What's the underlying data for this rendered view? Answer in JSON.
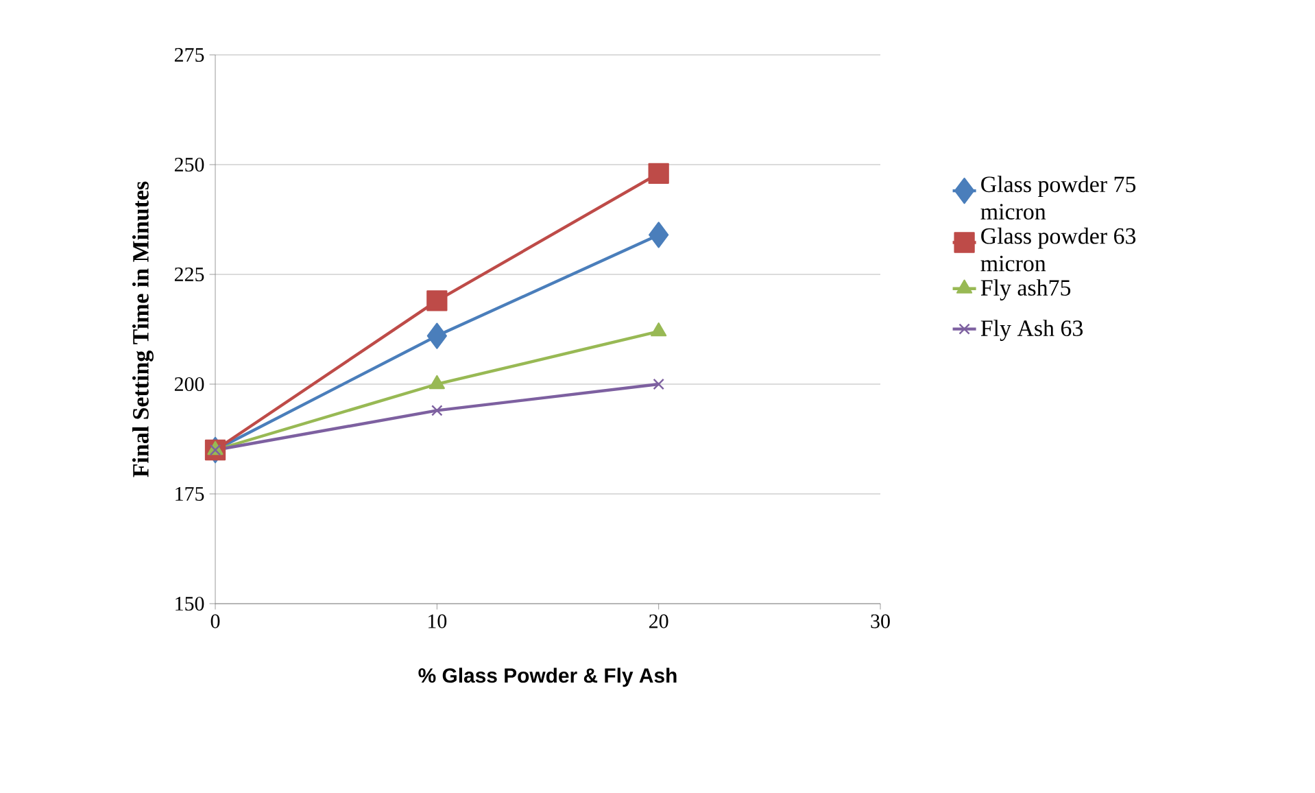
{
  "chart_data": {
    "type": "line",
    "xlabel": "%  Glass Powder & Fly Ash",
    "ylabel": "Final Setting Time in Minutes",
    "x": [
      0,
      10,
      20
    ],
    "xlim": [
      0,
      30
    ],
    "xticks": [
      0,
      10,
      20,
      30
    ],
    "ylim": [
      150,
      275
    ],
    "yticks": [
      150,
      175,
      200,
      225,
      250,
      275
    ],
    "grid": "y",
    "legend": "right",
    "series": [
      {
        "name": " Glass powder 75 micron",
        "color": "#4a7ebb",
        "marker": "diamond",
        "values": [
          185,
          211,
          234
        ]
      },
      {
        "name": "Glass powder 63 micron",
        "color": "#be4b48",
        "marker": "square",
        "values": [
          185,
          219,
          248
        ]
      },
      {
        "name": "Fly ash75",
        "color": "#98b954",
        "marker": "triangle",
        "values": [
          185,
          200,
          212
        ]
      },
      {
        "name": "Fly Ash 63",
        "color": "#7d60a0",
        "marker": "cross",
        "values": [
          185,
          194,
          200
        ]
      }
    ]
  }
}
